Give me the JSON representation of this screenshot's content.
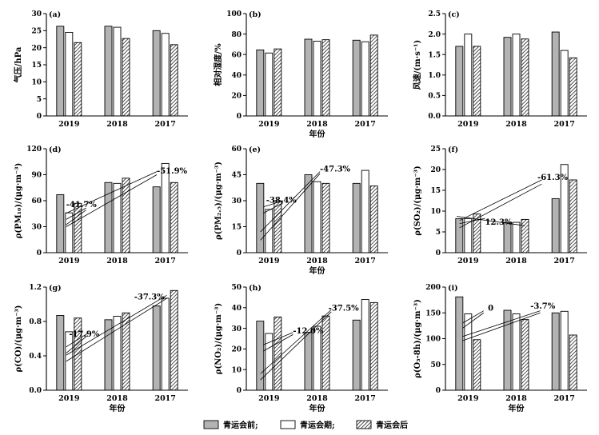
{
  "legend": {
    "before": "青运会前;",
    "during": "青运会期;",
    "after": "青运会后"
  },
  "colors": {
    "before": "#b3b3b3",
    "during": "#ffffff",
    "after": "hatched"
  },
  "chart_data": [
    {
      "type": "bar",
      "panel": "(a)",
      "ylabel": "气压/hPa",
      "xlabel": "",
      "categories": [
        "2019",
        "2018",
        "2017"
      ],
      "ylim": [
        0,
        30
      ],
      "yticks": [
        0,
        5,
        10,
        15,
        20,
        25,
        30
      ],
      "series": [
        {
          "name": "青运会前",
          "values": [
            26.3,
            26.3,
            25.0
          ]
        },
        {
          "name": "青运会期",
          "values": [
            24.5,
            26.0,
            24.2
          ]
        },
        {
          "name": "青运会后",
          "values": [
            21.5,
            22.7,
            20.9
          ]
        }
      ],
      "annotations": []
    },
    {
      "type": "bar",
      "panel": "(b)",
      "ylabel": "相对湿度/%",
      "xlabel": "",
      "categories": [
        "2019",
        "2018",
        "2017"
      ],
      "ylim": [
        0,
        100
      ],
      "yticks": [
        0,
        20,
        40,
        60,
        80,
        100
      ],
      "series": [
        {
          "name": "青运会前",
          "values": [
            64.5,
            75.0,
            74.0
          ]
        },
        {
          "name": "青运会期",
          "values": [
            61.5,
            73.0,
            72.5
          ]
        },
        {
          "name": "青运会后",
          "values": [
            65.5,
            74.5,
            79.0
          ]
        }
      ],
      "annotations": []
    },
    {
      "type": "bar",
      "panel": "(c)",
      "ylabel": "风速/(m·s⁻¹)",
      "xlabel": "",
      "categories": [
        "2019",
        "2018",
        "2017"
      ],
      "ylim": [
        0,
        2.5
      ],
      "yticks": [
        0,
        0.5,
        1.0,
        1.5,
        2.0,
        2.5
      ],
      "series": [
        {
          "name": "青运会前",
          "values": [
            1.7,
            1.92,
            2.05
          ]
        },
        {
          "name": "青运会期",
          "values": [
            2.0,
            2.0,
            1.6
          ]
        },
        {
          "name": "青运会后",
          "values": [
            1.7,
            1.88,
            1.42
          ]
        }
      ],
      "annotations": []
    },
    {
      "type": "bar",
      "panel": "(d)",
      "ylabel": "ρ(PM₁₀)/(μg·m⁻³)",
      "xlabel": "",
      "categories": [
        "2019",
        "2018",
        "2017"
      ],
      "ylim": [
        0,
        120
      ],
      "yticks": [
        0,
        30,
        60,
        90,
        120
      ],
      "series": [
        {
          "name": "青运会前",
          "values": [
            67,
            81,
            76
          ]
        },
        {
          "name": "青运会期",
          "values": [
            46,
            80,
            103
          ]
        },
        {
          "name": "青运会后",
          "values": [
            57,
            86,
            81
          ]
        }
      ],
      "annotations": [
        "-41.7%",
        "-51.9%"
      ]
    },
    {
      "type": "bar",
      "panel": "(e)",
      "ylabel": "ρ(PM₂.₅)/(μg·m⁻³)",
      "xlabel": "",
      "categories": [
        "2019",
        "2018",
        "2017"
      ],
      "ylim": [
        0,
        60
      ],
      "yticks": [
        0,
        15,
        30,
        45,
        60
      ],
      "series": [
        {
          "name": "青运会前",
          "values": [
            40,
            45,
            40
          ]
        },
        {
          "name": "青运会期",
          "values": [
            25,
            41,
            47.5
          ]
        },
        {
          "name": "青运会后",
          "values": [
            30,
            40,
            38.5
          ]
        }
      ],
      "annotations": [
        "-38.4%",
        "-47.3%"
      ]
    },
    {
      "type": "bar",
      "panel": "(f)",
      "ylabel": "ρ(SO₂)/(μg·m⁻³)",
      "xlabel": "",
      "categories": [
        "2019",
        "2018",
        "2017"
      ],
      "ylim": [
        0,
        25
      ],
      "yticks": [
        0,
        5,
        10,
        15,
        20,
        25
      ],
      "series": [
        {
          "name": "青运会前",
          "values": [
            8.2,
            7.3,
            13.0
          ]
        },
        {
          "name": "青运会期",
          "values": [
            8.2,
            7.3,
            21.2
          ]
        },
        {
          "name": "青运会后",
          "values": [
            9.3,
            8.0,
            17.5
          ]
        }
      ],
      "annotations": [
        "12.3%",
        "-61.3%"
      ]
    },
    {
      "type": "bar",
      "panel": "(g)",
      "ylabel": "ρ(CO)/(μg·m⁻³)",
      "xlabel": "年份",
      "categories": [
        "2019",
        "2018",
        "2017"
      ],
      "ylim": [
        0,
        1.2
      ],
      "yticks": [
        0,
        0.4,
        0.8,
        1.2
      ],
      "series": [
        {
          "name": "青运会前",
          "values": [
            0.87,
            0.82,
            0.98
          ]
        },
        {
          "name": "青运会期",
          "values": [
            0.68,
            0.86,
            1.07
          ]
        },
        {
          "name": "青运会后",
          "values": [
            0.84,
            0.9,
            1.16
          ]
        }
      ],
      "annotations": [
        "-17.9%",
        "-37.3%"
      ]
    },
    {
      "type": "bar",
      "panel": "(h)",
      "ylabel": "ρ(NO₂)/(μg·m⁻³)",
      "xlabel": "年份",
      "categories": [
        "2019",
        "2018",
        "2017"
      ],
      "ylim": [
        0,
        50
      ],
      "yticks": [
        0,
        10,
        20,
        30,
        40,
        50
      ],
      "series": [
        {
          "name": "青运会前",
          "values": [
            33.5,
            28,
            34
          ]
        },
        {
          "name": "青运会期",
          "values": [
            27.5,
            31,
            44
          ]
        },
        {
          "name": "青运会后",
          "values": [
            35.5,
            36,
            42.5
          ]
        }
      ],
      "annotations": [
        "-12.0%",
        "-37.5%"
      ]
    },
    {
      "type": "bar",
      "panel": "(i)",
      "ylabel": "ρ(O₃-8h)/(μg·m⁻³)",
      "xlabel": "年份",
      "categories": [
        "2019",
        "2018",
        "2017"
      ],
      "ylim": [
        0,
        200
      ],
      "yticks": [
        0,
        50,
        100,
        150,
        200
      ],
      "series": [
        {
          "name": "青运会前",
          "values": [
            181,
            155,
            150
          ]
        },
        {
          "name": "青运会期",
          "values": [
            148,
            148,
            153
          ]
        },
        {
          "name": "青运会后",
          "values": [
            98,
            137,
            107
          ]
        }
      ],
      "annotations": [
        "0",
        "-3.7%"
      ]
    }
  ]
}
